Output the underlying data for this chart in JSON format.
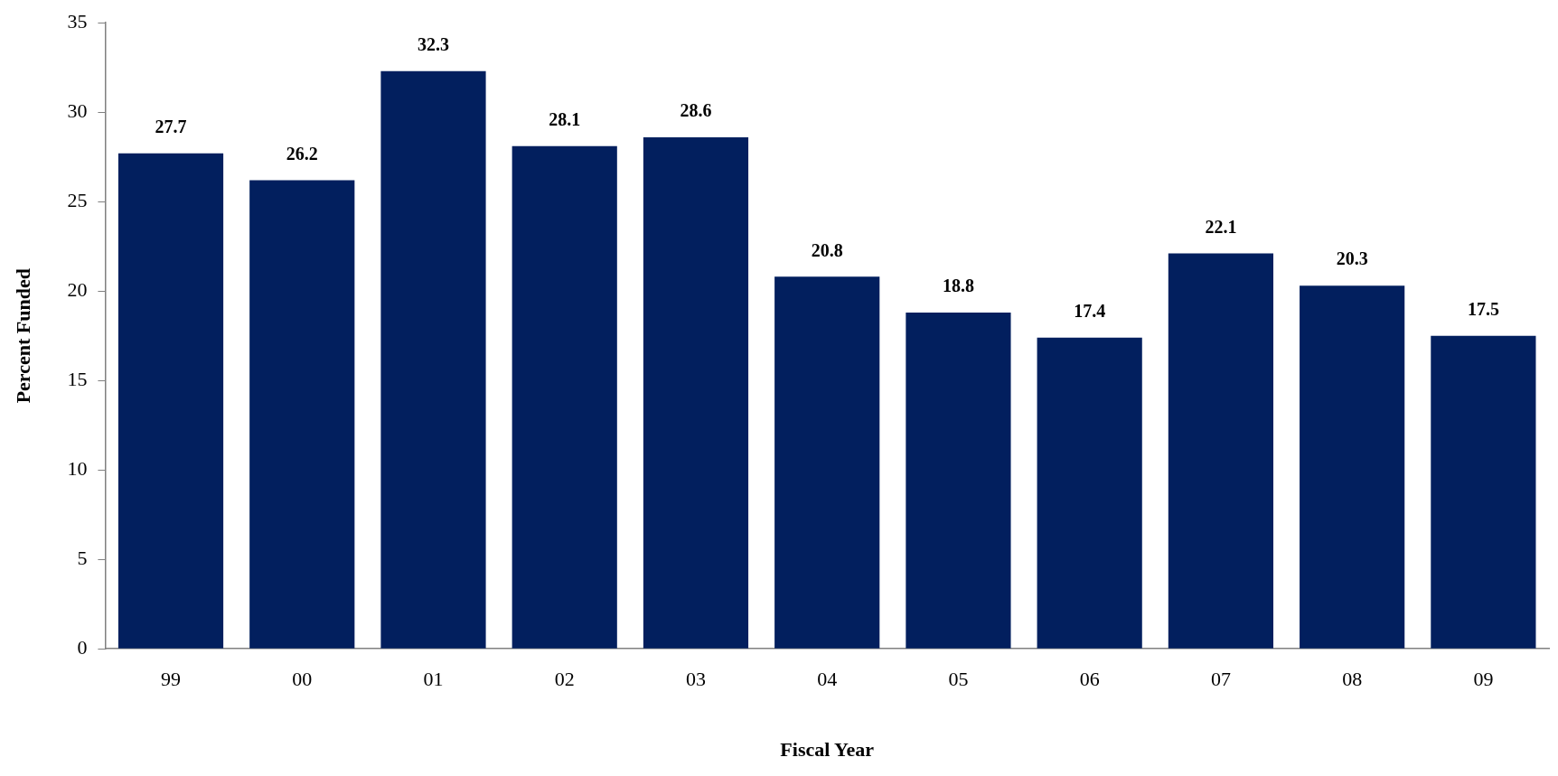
{
  "chart_data": {
    "type": "bar",
    "xlabel": "Fiscal Year",
    "ylabel": "Percent Funded",
    "categories": [
      "99",
      "00",
      "01",
      "02",
      "03",
      "04",
      "05",
      "06",
      "07",
      "08",
      "09"
    ],
    "values": [
      27.7,
      26.2,
      32.3,
      28.1,
      28.6,
      20.8,
      18.8,
      17.4,
      22.1,
      20.3,
      17.5
    ],
    "color": "#021f5e",
    "ylim": [
      0,
      35
    ],
    "yticks": [
      0,
      5,
      10,
      15,
      20,
      25,
      30,
      35
    ],
    "grid": false,
    "legend": false,
    "data_labels": true
  }
}
